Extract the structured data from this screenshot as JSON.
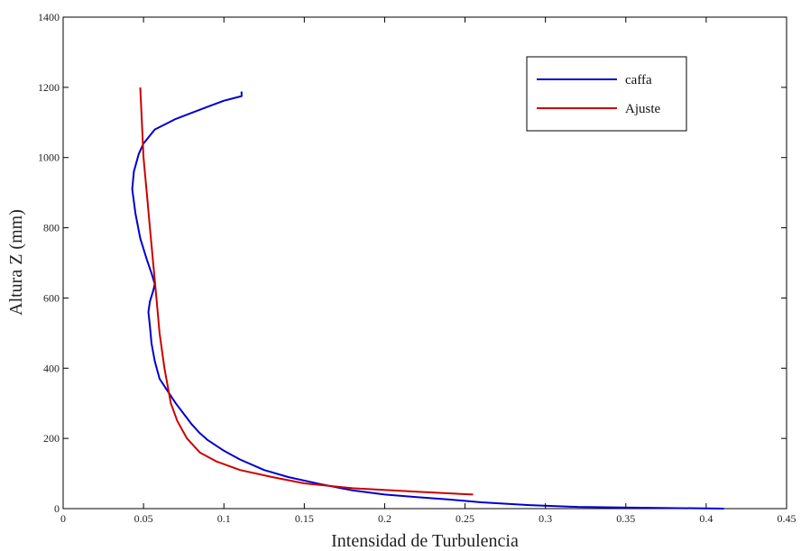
{
  "chart_data": {
    "type": "line",
    "title": "",
    "xlabel": "Intensidad de Turbulencia",
    "ylabel": "Altura Z (mm)",
    "xlim": [
      0,
      0.45
    ],
    "ylim": [
      0,
      1400
    ],
    "xticks": [
      0,
      0.05,
      0.1,
      0.15,
      0.2,
      0.25,
      0.3,
      0.35,
      0.4,
      0.45
    ],
    "xtick_labels": [
      "0",
      "0.05",
      "0.1",
      "0.15",
      "0.2",
      "0.25",
      "0.3",
      "0.35",
      "0.4",
      "0.45"
    ],
    "yticks": [
      0,
      200,
      400,
      600,
      800,
      1000,
      1200,
      1400
    ],
    "ytick_labels": [
      "0",
      "200",
      "400",
      "600",
      "800",
      "1000",
      "1200",
      "1400"
    ],
    "grid": false,
    "legend_position": "top-right",
    "series": [
      {
        "name": "caffa",
        "color": "#0000cc",
        "points": [
          [
            0.411,
            0
          ],
          [
            0.37,
            2
          ],
          [
            0.32,
            5
          ],
          [
            0.29,
            10
          ],
          [
            0.26,
            18
          ],
          [
            0.24,
            26
          ],
          [
            0.22,
            33
          ],
          [
            0.2,
            40
          ],
          [
            0.18,
            52
          ],
          [
            0.16,
            70
          ],
          [
            0.14,
            90
          ],
          [
            0.125,
            110
          ],
          [
            0.11,
            140
          ],
          [
            0.1,
            165
          ],
          [
            0.09,
            195
          ],
          [
            0.085,
            215
          ],
          [
            0.08,
            240
          ],
          [
            0.075,
            270
          ],
          [
            0.07,
            300
          ],
          [
            0.065,
            335
          ],
          [
            0.06,
            370
          ],
          [
            0.057,
            420
          ],
          [
            0.055,
            470
          ],
          [
            0.054,
            520
          ],
          [
            0.053,
            560
          ],
          [
            0.054,
            590
          ],
          [
            0.056,
            620
          ],
          [
            0.057,
            640
          ],
          [
            0.055,
            670
          ],
          [
            0.052,
            710
          ],
          [
            0.048,
            770
          ],
          [
            0.045,
            840
          ],
          [
            0.043,
            910
          ],
          [
            0.044,
            960
          ],
          [
            0.047,
            1010
          ],
          [
            0.05,
            1040
          ],
          [
            0.057,
            1080
          ],
          [
            0.07,
            1110
          ],
          [
            0.09,
            1145
          ],
          [
            0.1,
            1162
          ],
          [
            0.111,
            1175
          ],
          [
            0.111,
            1188
          ]
        ]
      },
      {
        "name": "Ajuste",
        "color": "#cc0000",
        "points": [
          [
            0.255,
            40
          ],
          [
            0.22,
            48
          ],
          [
            0.18,
            58
          ],
          [
            0.15,
            72
          ],
          [
            0.13,
            90
          ],
          [
            0.11,
            110
          ],
          [
            0.095,
            135
          ],
          [
            0.085,
            160
          ],
          [
            0.077,
            200
          ],
          [
            0.071,
            250
          ],
          [
            0.067,
            300
          ],
          [
            0.063,
            400
          ],
          [
            0.06,
            500
          ],
          [
            0.058,
            600
          ],
          [
            0.056,
            700
          ],
          [
            0.054,
            800
          ],
          [
            0.052,
            900
          ],
          [
            0.05,
            1000
          ],
          [
            0.049,
            1100
          ],
          [
            0.048,
            1200
          ]
        ]
      }
    ]
  }
}
